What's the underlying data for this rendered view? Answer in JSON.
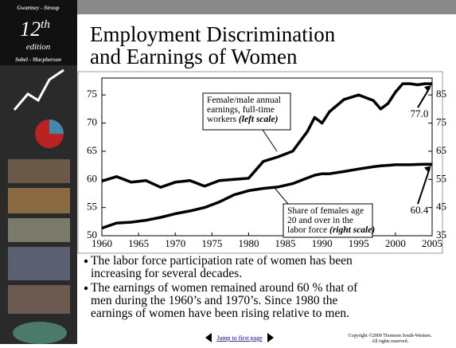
{
  "slide": {
    "sidebar": {
      "top": "Gwartney - Stroup",
      "edition_number": "12",
      "edition_suffix": "th",
      "edition_word": "edition",
      "bottom": "Sobel - Macpherson"
    },
    "title": [
      "Employment Discrimination",
      "and Earnings of Women"
    ],
    "bullets": [
      [
        "The labor force participation rate of women has been",
        "increasing for several decades."
      ],
      [
        "The earnings of women remained around 60 % that of",
        "men during the 1960’s and 1970’s.  Since 1980 the",
        "earnings of women have been rising relative to men."
      ]
    ],
    "jump_link": "Jump to first page",
    "copyright": [
      "Copyright ©2009  Thomson South-Western.",
      "All rights reserved."
    ]
  },
  "chart_data": {
    "type": "line",
    "x": [
      1960,
      1962,
      1964,
      1966,
      1968,
      1970,
      1972,
      1974,
      1976,
      1978,
      1980,
      1982,
      1984,
      1986,
      1988,
      1989,
      1990,
      1991,
      1993,
      1995,
      1997,
      1998,
      1999,
      2000,
      2001,
      2002,
      2003,
      2004,
      2005
    ],
    "xlim": [
      1960,
      2005
    ],
    "xticks": [
      1960,
      1965,
      1970,
      1975,
      1980,
      1985,
      1990,
      1995,
      2000,
      2005
    ],
    "ylim": [
      50,
      78
    ],
    "yticks": [
      50,
      55,
      60,
      65,
      70,
      75
    ],
    "y2lim": [
      35,
      91
    ],
    "y2ticks": [
      35,
      45,
      55,
      65,
      75,
      85
    ],
    "series": [
      {
        "color": "#000000",
        "values": [
          59.7,
          60.5,
          59.5,
          59.8,
          58.6,
          59.5,
          59.8,
          58.8,
          59.8,
          60.0,
          60.2,
          63.2,
          64.0,
          65.0,
          68.5,
          71.0,
          70.0,
          72.0,
          74.2,
          75.0,
          74.0,
          72.5,
          73.5,
          75.5,
          77.0,
          77.0,
          76.8,
          77.0,
          77.0
        ],
        "value_labels": [
          null,
          null,
          null,
          null,
          null,
          null,
          null,
          null,
          null,
          null,
          null,
          null,
          null,
          null,
          null,
          null,
          null,
          null,
          null,
          null,
          null,
          null,
          null,
          null,
          null,
          null,
          null,
          null,
          "77.0"
        ]
      },
      {
        "color": "#000000",
        "axis": "y2",
        "values": [
          37.7,
          39.5,
          39.8,
          40.5,
          41.5,
          42.8,
          43.8,
          45.0,
          47.0,
          49.5,
          51.0,
          51.8,
          52.3,
          53.5,
          55.5,
          56.5,
          57.0,
          57.0,
          57.8,
          58.7,
          59.5,
          59.8,
          60.0,
          60.2,
          60.2,
          60.2,
          60.3,
          60.4,
          60.4
        ],
        "value_labels": [
          null,
          null,
          null,
          null,
          null,
          null,
          null,
          null,
          null,
          null,
          null,
          null,
          null,
          null,
          null,
          null,
          null,
          null,
          null,
          null,
          null,
          null,
          null,
          null,
          null,
          null,
          null,
          null,
          "60.4"
        ]
      }
    ],
    "annotations": [
      {
        "lines": [
          "Female/male annual",
          "earnings, full-time",
          "workers "
        ],
        "note": "(left scale)"
      },
      {
        "lines": [
          "Share of females age",
          "20 and over in the",
          "labor force "
        ],
        "note": "(right scale)"
      }
    ]
  }
}
